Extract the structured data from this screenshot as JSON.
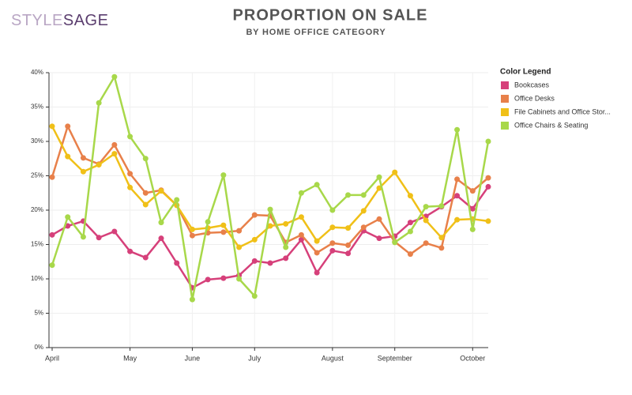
{
  "logo": {
    "part1": "STYLE",
    "part2": "SAGE"
  },
  "chart_data": {
    "type": "line",
    "title": "PROPORTION ON SALE",
    "subtitle": "BY HOME OFFICE CATEGORY",
    "legend_title": "Color Legend",
    "legend_position": "right",
    "grid": true,
    "categories": [
      "April",
      null,
      null,
      null,
      null,
      "May",
      null,
      null,
      null,
      "June",
      null,
      null,
      null,
      "July",
      null,
      null,
      null,
      null,
      "August",
      null,
      null,
      null,
      "September",
      null,
      null,
      null,
      null,
      "October",
      null
    ],
    "ylim": [
      0,
      40
    ],
    "yticks": [
      {
        "value": 0,
        "label": "0%"
      },
      {
        "value": 5,
        "label": "5%"
      },
      {
        "value": 10,
        "label": "10%"
      },
      {
        "value": 15,
        "label": "15%"
      },
      {
        "value": 20,
        "label": "20%"
      },
      {
        "value": 25,
        "label": "25%"
      },
      {
        "value": 30,
        "label": "30%"
      },
      {
        "value": 35,
        "label": "35%"
      },
      {
        "value": 40,
        "label": "40%"
      }
    ],
    "series": [
      {
        "name": "Bookcases",
        "color": "#d6407a",
        "values": [
          16.4,
          17.7,
          18.4,
          16.0,
          16.9,
          14.0,
          13.1,
          15.9,
          12.3,
          8.7,
          9.9,
          10.1,
          10.5,
          12.6,
          12.3,
          13.0,
          15.7,
          10.9,
          14.1,
          13.7,
          17.0,
          15.9,
          16.2,
          18.2,
          19.1,
          20.5,
          22.1,
          20.2,
          23.4
        ]
      },
      {
        "name": "Office Desks",
        "color": "#e8804a",
        "values": [
          24.8,
          32.2,
          27.6,
          26.7,
          29.5,
          25.3,
          22.5,
          22.9,
          20.7,
          16.3,
          16.7,
          16.8,
          17.0,
          19.3,
          19.2,
          15.3,
          16.4,
          13.8,
          15.2,
          14.9,
          17.5,
          18.7,
          15.4,
          13.6,
          15.2,
          14.5,
          24.5,
          22.8,
          24.7
        ]
      },
      {
        "name": "File Cabinets and Office Stor...",
        "color": "#f0c018",
        "values": [
          32.2,
          27.8,
          25.6,
          26.6,
          28.2,
          23.3,
          20.8,
          22.8,
          20.7,
          17.2,
          17.4,
          17.8,
          14.6,
          15.7,
          17.7,
          18.0,
          19.0,
          15.5,
          17.5,
          17.4,
          19.9,
          23.2,
          25.5,
          22.1,
          18.5,
          16.0,
          18.6,
          18.7,
          18.4
        ]
      },
      {
        "name": "Office Chairs & Seating",
        "color": "#a8d84a",
        "values": [
          12.0,
          19.0,
          16.1,
          35.6,
          39.4,
          30.7,
          27.5,
          18.2,
          21.5,
          7.0,
          18.3,
          25.1,
          10.0,
          7.5,
          20.1,
          14.6,
          22.5,
          23.7,
          20.0,
          22.2,
          22.2,
          24.8,
          15.3,
          16.9,
          20.5,
          20.6,
          31.7,
          17.2,
          30.0
        ]
      }
    ]
  }
}
